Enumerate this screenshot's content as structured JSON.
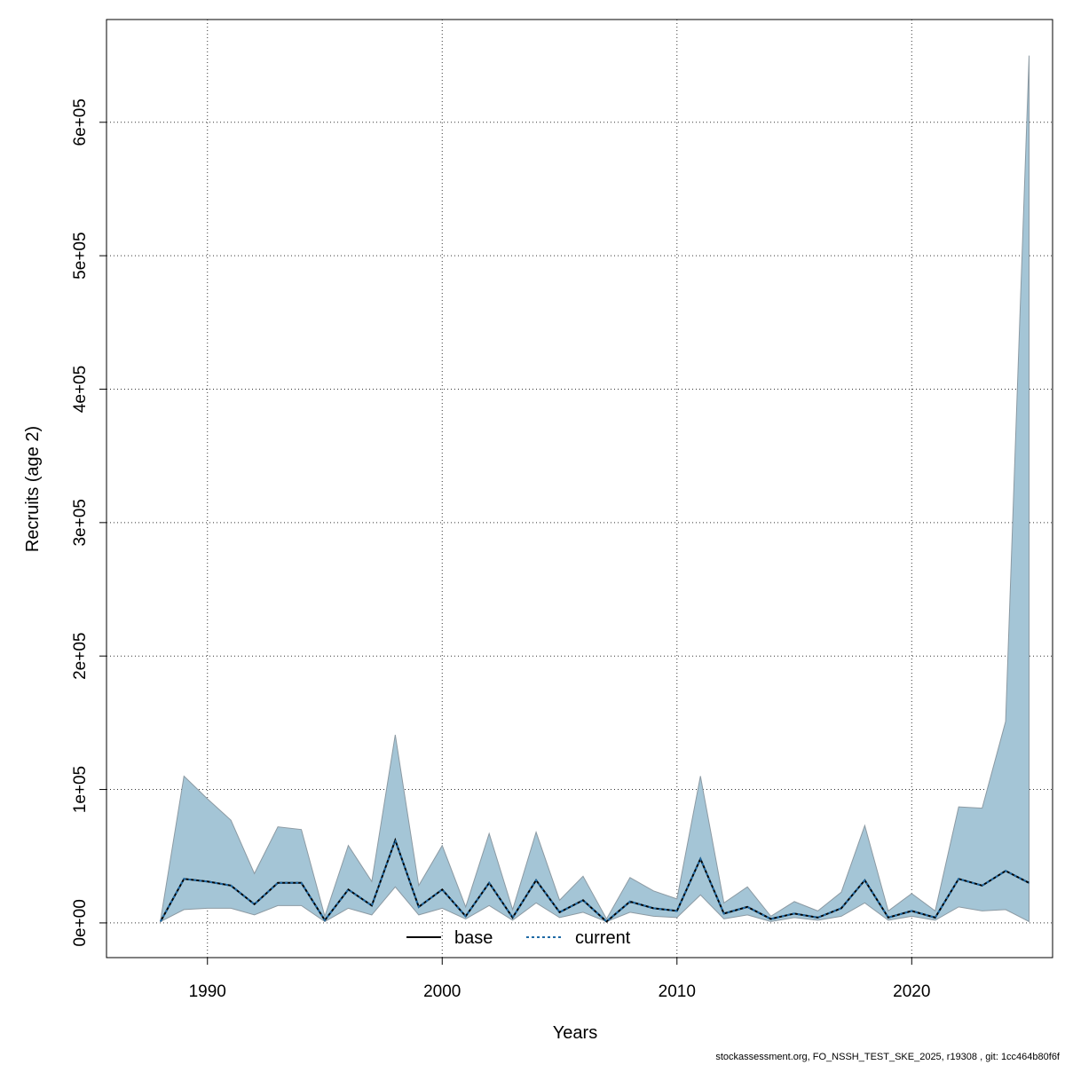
{
  "chart_data": {
    "type": "area",
    "xlabel": "Years",
    "ylabel": "Recruits (age 2)",
    "xlim": [
      1985.7,
      2026.0
    ],
    "ylim": [
      -26000,
      677000
    ],
    "x_ticks": [
      1990,
      2000,
      2010,
      2020
    ],
    "x_tick_labels": [
      "1990",
      "2000",
      "2010",
      "2020"
    ],
    "y_ticks": [
      0,
      100000,
      200000,
      300000,
      400000,
      500000,
      600000
    ],
    "y_tick_labels": [
      "0e+00",
      "1e+05",
      "2e+05",
      "3e+05",
      "4e+05",
      "5e+05",
      "6e+05"
    ],
    "grid": true,
    "x": [
      1988,
      1989,
      1990,
      1991,
      1992,
      1993,
      1994,
      1995,
      1996,
      1997,
      1998,
      1999,
      2000,
      2001,
      2002,
      2003,
      2004,
      2005,
      2006,
      2007,
      2008,
      2009,
      2010,
      2011,
      2012,
      2013,
      2014,
      2015,
      2016,
      2017,
      2018,
      2019,
      2020,
      2021,
      2022,
      2023,
      2024,
      2025
    ],
    "band": {
      "name": "confidence interval",
      "upper": [
        2000,
        110000,
        93000,
        77000,
        37000,
        72000,
        70000,
        5000,
        58000,
        31000,
        141000,
        28000,
        58000,
        12000,
        67000,
        10000,
        68000,
        17000,
        35000,
        3000,
        34000,
        24000,
        18000,
        110000,
        15000,
        27000,
        5000,
        16000,
        9000,
        23000,
        73000,
        9000,
        22000,
        9000,
        87000,
        86000,
        151000,
        650000
      ],
      "lower": [
        1000,
        10000,
        11000,
        11000,
        6000,
        13000,
        13000,
        1000,
        11000,
        6000,
        27000,
        6000,
        11000,
        3000,
        13000,
        2000,
        15000,
        4000,
        8000,
        1000,
        8000,
        5000,
        4000,
        21000,
        3000,
        6000,
        1000,
        4000,
        2000,
        5000,
        15000,
        2000,
        5000,
        2000,
        12000,
        9000,
        10000,
        1000
      ]
    },
    "series": [
      {
        "name": "base",
        "line_style": "solid",
        "color": "#000000",
        "values": [
          1000,
          33000,
          31000,
          28000,
          14000,
          30000,
          30000,
          2000,
          25000,
          13000,
          62000,
          12000,
          25000,
          5000,
          30000,
          4000,
          32000,
          8000,
          17000,
          1000,
          16000,
          11000,
          9000,
          48000,
          7000,
          12000,
          3000,
          7000,
          4000,
          11000,
          32000,
          4000,
          9000,
          4000,
          33000,
          28000,
          39000,
          30000
        ]
      },
      {
        "name": "current",
        "line_style": "dashed",
        "color": "#1f6aa5",
        "values": [
          1000,
          33000,
          31000,
          28000,
          14000,
          30000,
          30000,
          2000,
          25000,
          13000,
          62000,
          12000,
          25000,
          5000,
          30000,
          4000,
          32000,
          8000,
          17000,
          1000,
          16000,
          11000,
          9000,
          48000,
          7000,
          12000,
          3000,
          7000,
          4000,
          11000,
          32000,
          4000,
          9000,
          4000,
          33000,
          28000,
          39000,
          30000
        ]
      }
    ],
    "legend": {
      "placement": "bottom-center",
      "entries": [
        "base",
        "current"
      ]
    },
    "colors": {
      "band_fill": "#a4c5d6",
      "band_stroke": "#8c9aa3",
      "grid": "#333333"
    }
  },
  "footer": {
    "text": "stockassessment.org, FO_NSSH_TEST_SKE_2025, r19308 , git: 1cc464b80f6f"
  }
}
